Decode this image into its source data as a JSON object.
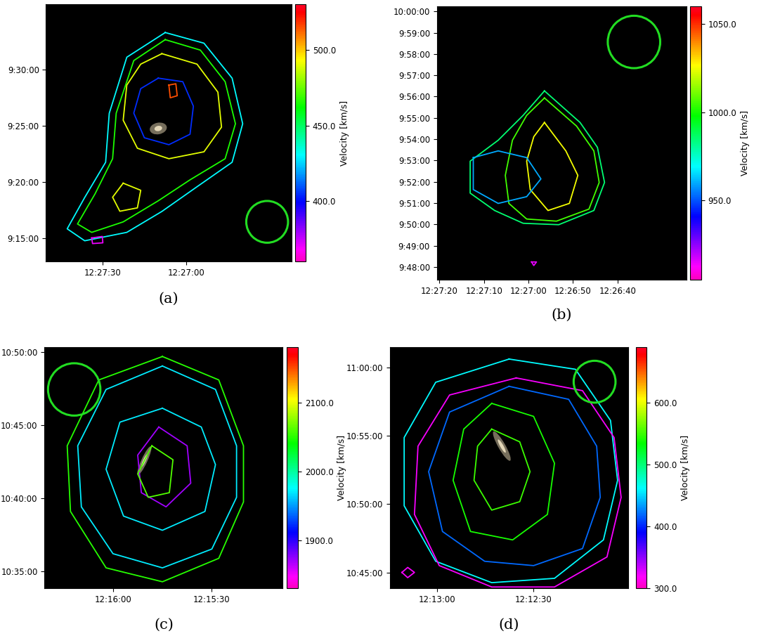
{
  "chart_data": [
    {
      "type": "contour",
      "title": "(a)",
      "xlim": [
        44870.4,
        44782.2
      ],
      "ylim": [
        33173,
        34549
      ],
      "xticks": [
        {
          "value": 44850,
          "label": "12:27:30"
        },
        {
          "value": 44820,
          "label": "12:27:00"
        }
      ],
      "yticks": [
        {
          "value": 33300,
          "label": "9:15:00"
        },
        {
          "value": 33600,
          "label": "9:20:00"
        },
        {
          "value": 33900,
          "label": "9:25:00"
        },
        {
          "value": 34200,
          "label": "9:30:00"
        }
      ],
      "colorbar": {
        "label": "Velocity [km/s]",
        "range": [
          360,
          530
        ],
        "ticks": [
          {
            "value": 400,
            "label": "400.0"
          },
          {
            "value": 450,
            "label": "450.0"
          },
          {
            "value": 500,
            "label": "500.0"
          }
        ]
      },
      "contours": [
        {
          "velocity": 430,
          "x": [
            44827.6,
            44813.7,
            44803.6,
            44799.8,
            44803.6,
            44816.2,
            44828.8,
            44841.4,
            44856.5,
            44862.8,
            44856.5,
            44849.0,
            44847.7,
            44841.4
          ],
          "y": [
            34399,
            34342,
            34155,
            33911,
            33705,
            33574,
            33442,
            33330,
            33285,
            33349,
            33517,
            33705,
            33967,
            34267
          ]
        },
        {
          "velocity": 465,
          "x": [
            44827.6,
            44815.0,
            44806.1,
            44802.4,
            44806.1,
            44818.7,
            44830.1,
            44842.7,
            44854.0,
            44859.1,
            44852.8,
            44846.5,
            44845.2,
            44838.9
          ],
          "y": [
            34361,
            34305,
            34136,
            33911,
            33724,
            33611,
            33499,
            33386,
            33330,
            33375,
            33536,
            33724,
            33968,
            34249
          ]
        },
        {
          "velocity": 490,
          "x": [
            44828.8,
            44816.2,
            44808.7,
            44807.4,
            44813.7,
            44826.3,
            44837.6,
            44842.7,
            44841.4,
            44836.4
          ],
          "y": [
            34286,
            34230,
            34080,
            33893,
            33761,
            33724,
            33780,
            33930,
            34118,
            34230
          ]
        },
        {
          "velocity": 405,
          "x": [
            44830.1,
            44821.3,
            44817.5,
            44818.7,
            44826.3,
            44835.1,
            44838.9,
            44836.4
          ],
          "y": [
            34155,
            34136,
            34005,
            33855,
            33799,
            33836,
            33968,
            34099
          ]
        },
        {
          "velocity": 490,
          "x": [
            44842.7,
            44836.4,
            44837.6,
            44843.9,
            44846.5
          ],
          "y": [
            33593,
            33555,
            33461,
            33443,
            33518
          ]
        },
        {
          "velocity": 515,
          "x": [
            44826.3,
            44823.8,
            44823.3,
            44825.8
          ],
          "y": [
            34118,
            34125,
            34061,
            34050
          ]
        },
        {
          "velocity": 370,
          "x": [
            44854.0,
            44850.2,
            44850.0,
            44853.7
          ],
          "y": [
            33300,
            33308,
            33274,
            33270
          ]
        }
      ]
    },
    {
      "type": "contour",
      "title": "(b)",
      "xlim": [
        44840.6,
        44784.5
      ],
      "ylim": [
        35244,
        36014
      ],
      "xticks": [
        {
          "value": 44840,
          "label": "12:27:20"
        },
        {
          "value": 44830,
          "label": "12:27:10"
        },
        {
          "value": 44820,
          "label": "12:27:00"
        },
        {
          "value": 44810,
          "label": "12:26:50"
        },
        {
          "value": 44800,
          "label": "12:26:40"
        }
      ],
      "yticks": [
        {
          "value": 35280,
          "label": "9:48:00"
        },
        {
          "value": 35340,
          "label": "9:49:00"
        },
        {
          "value": 35400,
          "label": "9:50:00"
        },
        {
          "value": 35460,
          "label": "9:51:00"
        },
        {
          "value": 35520,
          "label": "9:52:00"
        },
        {
          "value": 35580,
          "label": "9:53:00"
        },
        {
          "value": 35640,
          "label": "9:54:00"
        },
        {
          "value": 35700,
          "label": "9:55:00"
        },
        {
          "value": 35760,
          "label": "9:56:00"
        },
        {
          "value": 35820,
          "label": "9:57:00"
        },
        {
          "value": 35880,
          "label": "9:58:00"
        },
        {
          "value": 35940,
          "label": "9:59:00"
        },
        {
          "value": 36000,
          "label": "10:00:00"
        }
      ],
      "colorbar": {
        "label": "Velocity [km/s]",
        "range": [
          905,
          1060
        ],
        "ticks": [
          {
            "value": 950,
            "label": "950.0"
          },
          {
            "value": 1000,
            "label": "1000.0"
          },
          {
            "value": 1050,
            "label": "1050.0"
          }
        ]
      },
      "contours": [
        {
          "velocity": 985,
          "x": [
            44816.4,
            44808.4,
            44804.5,
            44802.9,
            44805.3,
            44813.2,
            44821.2,
            44827.6,
            44833.1,
            44833.1,
            44826.8,
            44821.2
          ],
          "y": [
            35776,
            35687,
            35617,
            35518,
            35439,
            35399,
            35403,
            35439,
            35488,
            35578,
            35637,
            35707
          ]
        },
        {
          "velocity": 1005,
          "x": [
            44816.4,
            44809.2,
            44805.3,
            44804.1,
            44806.4,
            44813.7,
            44820.4,
            44824.4,
            44825.2,
            44823.6,
            44820.4
          ],
          "y": [
            35756,
            35677,
            35607,
            35518,
            35443,
            35409,
            35415,
            35459,
            35538,
            35637,
            35707
          ]
        },
        {
          "velocity": 1025,
          "x": [
            44816.4,
            44811.6,
            44808.9,
            44810.8,
            44815.6,
            44819.6,
            44820.4,
            44818.8
          ],
          "y": [
            35687,
            35607,
            35538,
            35459,
            35439,
            35498,
            35578,
            35647
          ]
        },
        {
          "velocity": 960,
          "x": [
            44832.4,
            44826.8,
            44820.4,
            44817.2,
            44820.4,
            44826.8,
            44832.4
          ],
          "y": [
            35588,
            35607,
            35588,
            35528,
            35478,
            35459,
            35498
          ]
        },
        {
          "velocity": 915,
          "x": [
            44819.3,
            44818.2,
            44818.8
          ],
          "y": [
            35294,
            35294,
            35284
          ]
        }
      ]
    },
    {
      "type": "contour",
      "title": "(c)",
      "xlim": [
        44180.8,
        44108.6
      ],
      "ylim": [
        38031,
        39019
      ],
      "xticks": [
        {
          "value": 44160,
          "label": "12:16:00"
        },
        {
          "value": 44130,
          "label": "12:15:30"
        }
      ],
      "yticks": [
        {
          "value": 38100,
          "label": "10:35:00"
        },
        {
          "value": 38400,
          "label": "10:40:00"
        },
        {
          "value": 38700,
          "label": "10:45:00"
        },
        {
          "value": 39000,
          "label": "10:50:00"
        }
      ],
      "colorbar": {
        "label": "Velocity [km/s]",
        "range": [
          1830,
          2180
        ],
        "ticks": [
          {
            "value": 1900,
            "label": "1900.0"
          },
          {
            "value": 2000,
            "label": "2000.0"
          },
          {
            "value": 2100,
            "label": "2100.0"
          }
        ]
      },
      "contours": [
        {
          "velocity": 2050,
          "x": [
            44145.0,
            44127.9,
            44120.4,
            44120.4,
            44127.9,
            44145.0,
            44162.1,
            44172.9,
            44173.9,
            44164.3
          ],
          "y": [
            38981,
            38885,
            38615,
            38385,
            38154,
            38058,
            38115,
            38346,
            38615,
            38885
          ]
        },
        {
          "velocity": 1970,
          "x": [
            44145.0,
            44128.9,
            44122.5,
            44122.5,
            44130.0,
            44145.0,
            44160.0,
            44169.6,
            44170.7,
            44162.1
          ],
          "y": [
            38942,
            38846,
            38615,
            38404,
            38192,
            38115,
            38173,
            38365,
            38615,
            38846
          ]
        },
        {
          "velocity": 1970,
          "x": [
            44145.0,
            44133.2,
            44128.9,
            44132.1,
            44145.0,
            44156.8,
            44162.1,
            44157.9
          ],
          "y": [
            38769,
            38692,
            38538,
            38346,
            38269,
            38327,
            38519,
            38712
          ]
        },
        {
          "velocity": 1870,
          "x": [
            44146.1,
            44137.5,
            44136.4,
            44143.9,
            44151.4,
            44152.5
          ],
          "y": [
            38692,
            38615,
            38462,
            38365,
            38423,
            38577
          ]
        },
        {
          "velocity": 2060,
          "x": [
            44148.2,
            44141.8,
            44142.9,
            44149.3,
            44152.5
          ],
          "y": [
            38615,
            38558,
            38423,
            38404,
            38500
          ]
        }
      ]
    },
    {
      "type": "contour",
      "title": "(d)",
      "xlim": [
        43994.6,
        43920.7
      ],
      "ylim": [
        38630,
        39690
      ],
      "xticks": [
        {
          "value": 43980,
          "label": "12:13:00"
        },
        {
          "value": 43950,
          "label": "12:12:30"
        }
      ],
      "yticks": [
        {
          "value": 38700,
          "label": "10:45:00"
        },
        {
          "value": 39000,
          "label": "10:50:00"
        },
        {
          "value": 39300,
          "label": "10:55:00"
        },
        {
          "value": 39600,
          "label": "11:00:00"
        }
      ],
      "colorbar": {
        "label": "Velocity [km/s]",
        "range": [
          300,
          690
        ],
        "ticks": [
          {
            "value": 300,
            "label": "300.0"
          },
          {
            "value": 400,
            "label": "400.0"
          },
          {
            "value": 500,
            "label": "500.0"
          },
          {
            "value": 600,
            "label": "600.0"
          }
        ]
      },
      "contours": [
        {
          "velocity": 460,
          "x": [
            43957.6,
            43937.0,
            43926.1,
            43923.9,
            43928.3,
            43943.5,
            43963.0,
            43980.4,
            43990.2,
            43990.2,
            43980.4
          ],
          "y": [
            39638,
            39593,
            39368,
            39105,
            38843,
            38674,
            38655,
            38749,
            38993,
            39293,
            39536
          ]
        },
        {
          "velocity": 320,
          "x": [
            43955.4,
            43934.8,
            43925.0,
            43922.8,
            43927.2,
            43943.5,
            43963.0,
            43979.3,
            43987.0,
            43985.9,
            43976.1
          ],
          "y": [
            39555,
            39499,
            39293,
            39030,
            38768,
            38636,
            38636,
            38730,
            38955,
            39255,
            39480
          ]
        },
        {
          "velocity": 420,
          "x": [
            43957.6,
            43939.1,
            43930.4,
            43929.3,
            43934.8,
            43950.0,
            43965.2,
            43978.3,
            43982.6,
            43976.1
          ],
          "y": [
            39518,
            39461,
            39255,
            39030,
            38805,
            38730,
            38749,
            38880,
            39143,
            39405
          ]
        },
        {
          "velocity": 540,
          "x": [
            43963.0,
            43950.0,
            43943.5,
            43945.7,
            43956.5,
            43969.6,
            43975.0,
            43971.7
          ],
          "y": [
            39443,
            39386,
            39180,
            38955,
            38843,
            38880,
            39105,
            39330
          ]
        },
        {
          "velocity": 550,
          "x": [
            43963.0,
            43954.3,
            43951.1,
            43954.3,
            43963.0,
            43968.5,
            43967.4
          ],
          "y": [
            39330,
            39274,
            39143,
            39011,
            38974,
            39105,
            39255
          ]
        },
        {
          "velocity": 320,
          "x": [
            43990.9,
            43989.1,
            43987.0,
            43989.1
          ],
          "y": [
            38700,
            38722,
            38700,
            38677
          ]
        }
      ]
    }
  ]
}
